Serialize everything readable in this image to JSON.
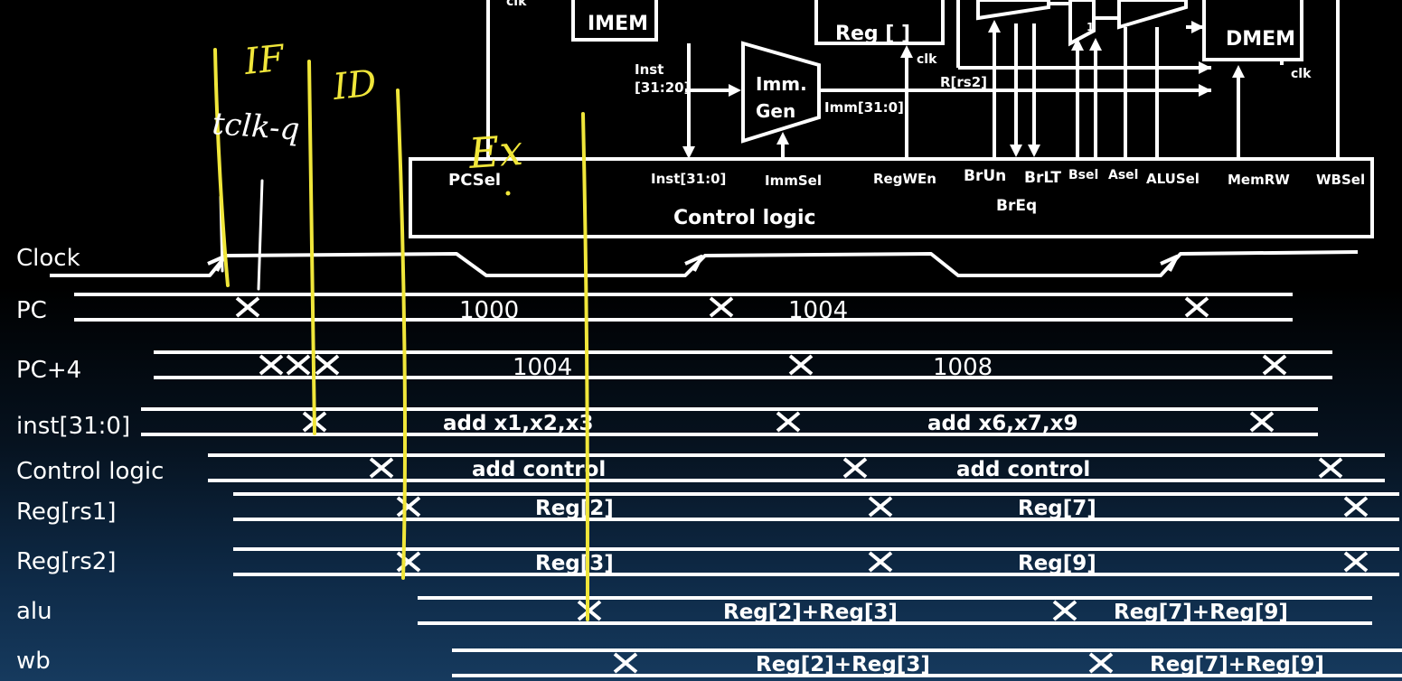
{
  "datapath": {
    "top_labels": {
      "clk_top": "clk",
      "imem": "IMEM",
      "reg": "Reg [ ]",
      "dmem": "DMEM"
    },
    "clk_labels": {
      "reg_clk": "clk",
      "dmem_clk": "clk"
    },
    "imm_gen": {
      "line1": "Imm.",
      "line2": "Gen"
    },
    "inst_in": {
      "line1": "Inst",
      "line2": "[31:20]"
    },
    "imm_out": "Imm[31:0]",
    "rs2": "R[rs2]",
    "mux_one": "1"
  },
  "control": {
    "title": "Control logic",
    "signals": {
      "pcsel": "PCSel",
      "inst": "Inst[31:0]",
      "immsel": "ImmSel",
      "regwen": "RegWEn",
      "brun": "BrUn",
      "brlt": "BrLT",
      "breq": "BrEq",
      "bsel": "Bsel",
      "asel": "Asel",
      "alusel": "ALUSel",
      "memrw": "MemRW",
      "wbsel": "WBSel"
    }
  },
  "annotations": {
    "if": "IF",
    "id": "ID",
    "ex": "Ex",
    "tclk_q": "tclk-q"
  },
  "timing": {
    "clock": "Clock",
    "pc": {
      "label": "PC",
      "v1": "1000",
      "v2": "1004"
    },
    "pc4": {
      "label": "PC+4",
      "v1": "1004",
      "v2": "1008"
    },
    "inst": {
      "label": "inst[31:0]",
      "v1": "add x1,x2,x3",
      "v2": "add x6,x7,x9"
    },
    "control": {
      "label": "Control logic",
      "v1": "add control",
      "v2": "add control"
    },
    "rs1": {
      "label": "Reg[rs1]",
      "v1": "Reg[2]",
      "v2": "Reg[7]"
    },
    "rs2": {
      "label": "Reg[rs2]",
      "v1": "Reg[3]",
      "v2": "Reg[9]"
    },
    "alu": {
      "label": "alu",
      "v1": "Reg[2]+Reg[3]",
      "v2": "Reg[7]+Reg[9]"
    },
    "wb": {
      "label": "wb",
      "v1": "Reg[2]+Reg[3]",
      "v2": "Reg[7]+Reg[9]"
    }
  },
  "colors": {
    "annotation": "#f0e63a",
    "line": "#ffffff",
    "background_top": "#000000",
    "background_bottom": "#163a5e"
  }
}
